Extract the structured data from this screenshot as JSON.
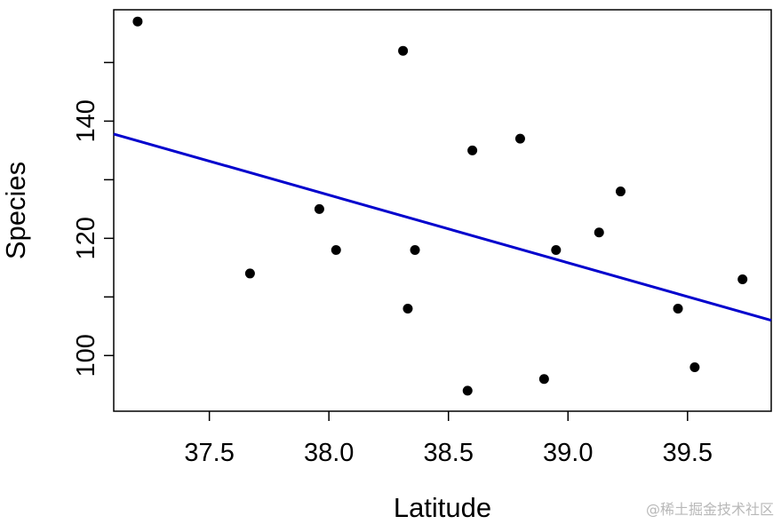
{
  "chart_data": {
    "type": "scatter",
    "title": "",
    "xlabel": "Latitude",
    "ylabel": "Species",
    "xlim": [
      37.1,
      39.85
    ],
    "ylim": [
      90.5,
      159
    ],
    "xticks": [
      37.5,
      38.0,
      38.5,
      39.0,
      39.5
    ],
    "xtick_labels": [
      "37.5",
      "38.0",
      "38.5",
      "39.0",
      "39.5"
    ],
    "yticks": [
      100,
      110,
      120,
      130,
      140,
      150
    ],
    "ytick_labels": [
      "100",
      "",
      "120",
      "",
      "140",
      ""
    ],
    "points": [
      {
        "x": 37.2,
        "y": 157
      },
      {
        "x": 37.67,
        "y": 114
      },
      {
        "x": 37.96,
        "y": 125
      },
      {
        "x": 38.03,
        "y": 118
      },
      {
        "x": 38.31,
        "y": 152
      },
      {
        "x": 38.33,
        "y": 108
      },
      {
        "x": 38.36,
        "y": 118
      },
      {
        "x": 38.58,
        "y": 94
      },
      {
        "x": 38.6,
        "y": 135
      },
      {
        "x": 38.8,
        "y": 137
      },
      {
        "x": 38.9,
        "y": 96
      },
      {
        "x": 38.95,
        "y": 118
      },
      {
        "x": 39.13,
        "y": 121
      },
      {
        "x": 39.22,
        "y": 128
      },
      {
        "x": 39.46,
        "y": 108
      },
      {
        "x": 39.53,
        "y": 98
      },
      {
        "x": 39.73,
        "y": 113
      }
    ],
    "fit_line": {
      "x": [
        37.1,
        39.85
      ],
      "y": [
        137.8,
        106.0
      ],
      "color": "#0000cd"
    },
    "grid": false,
    "point_color": "#000000"
  },
  "watermark": "@稀土掘金技术社区"
}
